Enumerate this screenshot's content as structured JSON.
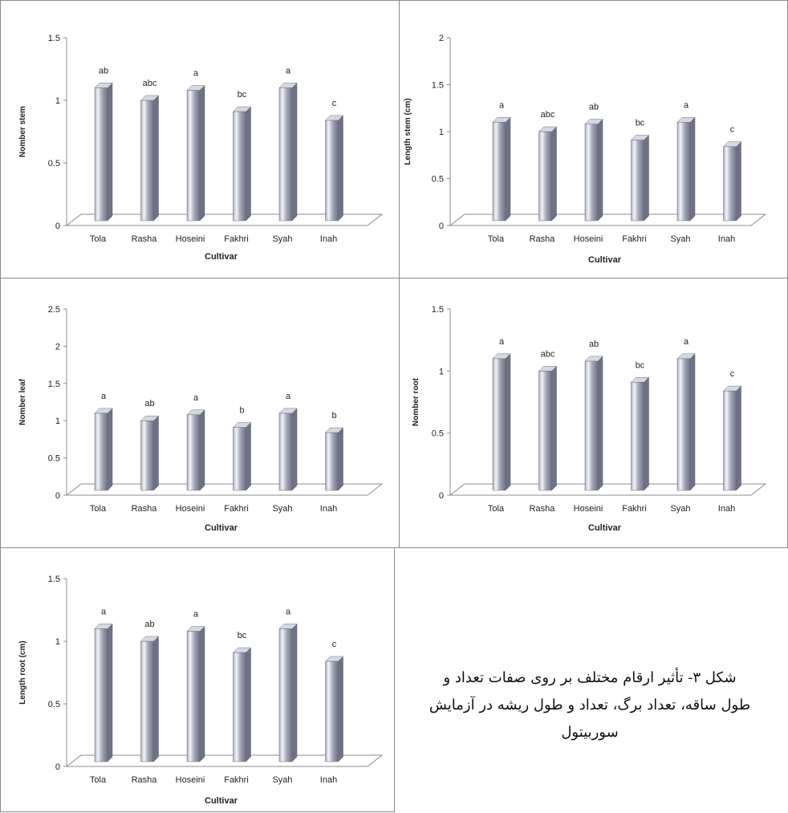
{
  "caption": {
    "lines": [
      "شکل ۳- تأثیر ارقام مختلف بر روی صفات تعداد و",
      "طول ساقه، تعداد برگ، تعداد و طول ریشه در آزمایش",
      "سوربیتول"
    ]
  },
  "colors": {
    "bar_light": "#f4f4f8",
    "bar_mid": "#a9abbb",
    "bar_dark": "#6f7184",
    "axis": "#8c8c8c"
  },
  "chart_data": [
    {
      "type": "bar",
      "title": "",
      "xlabel": "Cultivar",
      "ylabel": "Nomber stem",
      "categories": [
        "Tola",
        "Rasha",
        "Hoseini",
        "Fakhri",
        "Syah",
        "Inah"
      ],
      "values": [
        1.1,
        1.0,
        1.08,
        0.91,
        1.1,
        0.84
      ],
      "letters": [
        "ab",
        "abc",
        "a",
        "bc",
        "a",
        "c"
      ],
      "ylim": [
        0,
        1.5
      ],
      "yticks": [
        "0",
        "0.5",
        "1",
        "1.5"
      ],
      "grid": false
    },
    {
      "type": "bar",
      "title": "",
      "xlabel": "Cultivar",
      "ylabel": "Length stem (cm)",
      "categories": [
        "Tola",
        "Rasha",
        "Hoseini",
        "Fakhri",
        "Syah",
        "Inah"
      ],
      "values": [
        1.1,
        1.0,
        1.08,
        0.91,
        1.1,
        0.84
      ],
      "letters": [
        "a",
        "abc",
        "ab",
        "bc",
        "a",
        "c"
      ],
      "ylim": [
        0,
        2
      ],
      "yticks": [
        "0",
        "0.5",
        "1",
        "1.5",
        "2"
      ],
      "grid": false
    },
    {
      "type": "bar",
      "title": "",
      "xlabel": "Cultivar",
      "ylabel": "Nomber leaf",
      "categories": [
        "Tola",
        "Rasha",
        "Hoseini",
        "Fakhri",
        "Syah",
        "Inah"
      ],
      "values": [
        1.1,
        1.0,
        1.08,
        0.91,
        1.1,
        0.84
      ],
      "letters": [
        "a",
        "ab",
        "a",
        "b",
        "a",
        "b"
      ],
      "ylim": [
        0,
        2.5
      ],
      "yticks": [
        "0",
        "0.5",
        "1",
        "1.5",
        "2",
        "2.5"
      ],
      "grid": false
    },
    {
      "type": "bar",
      "title": "",
      "xlabel": "Cultivar",
      "ylabel": "Nomber root",
      "categories": [
        "Tola",
        "Rasha",
        "Hoseini",
        "Fakhri",
        "Syah",
        "Inah"
      ],
      "values": [
        1.1,
        1.0,
        1.08,
        0.91,
        1.1,
        0.84
      ],
      "letters": [
        "a",
        "abc",
        "ab",
        "bc",
        "a",
        "c"
      ],
      "ylim": [
        0,
        1.5
      ],
      "yticks": [
        "0",
        "0.5",
        "1",
        "1.5"
      ],
      "grid": false
    },
    {
      "type": "bar",
      "title": "",
      "xlabel": "Cultivar",
      "ylabel": "Length root (cm)",
      "categories": [
        "Tola",
        "Rasha",
        "Hoseini",
        "Fakhri",
        "Syah",
        "Inah"
      ],
      "values": [
        1.1,
        1.0,
        1.08,
        0.91,
        1.1,
        0.84
      ],
      "letters": [
        "a",
        "ab",
        "a",
        "bc",
        "a",
        "c"
      ],
      "ylim": [
        0,
        1.5
      ],
      "yticks": [
        "0",
        "0.5",
        "1",
        "1.5"
      ],
      "grid": false
    }
  ]
}
